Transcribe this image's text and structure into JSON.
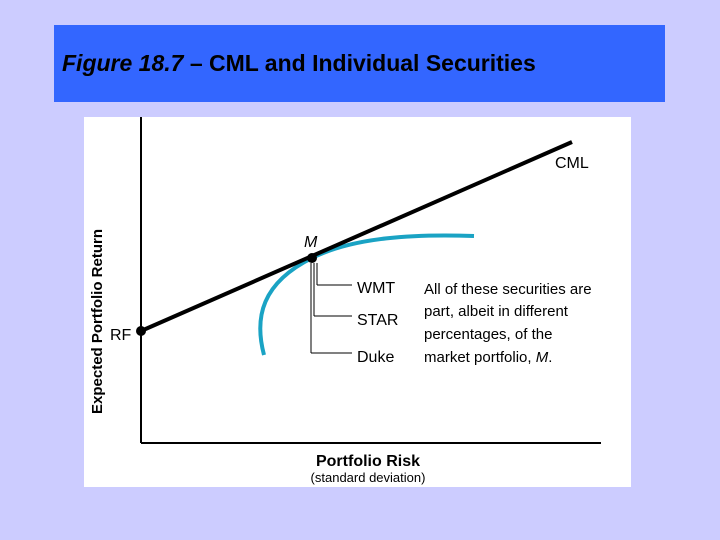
{
  "slide": {
    "title_fig": "Figure 18.7",
    "title_rest": " – CML and Individual Securities"
  },
  "diagram": {
    "y_axis_label": "Expected Portfolio Return",
    "x_axis_label": "Portfolio Risk",
    "x_axis_sublabel": "(standard deviation)",
    "cml_label": "CML",
    "market_label": "M",
    "rf_label": "RF",
    "securities": [
      "WMT",
      "STAR",
      "Duke"
    ],
    "note_lines": [
      "All of these securities are",
      "part, albeit in different",
      "percentages, of the",
      "market portfolio, "
    ],
    "note_italic": "M",
    "note_end": ".",
    "colors": {
      "cml_line": "#000000",
      "frontier": "#1aa3c4",
      "title_bg": "#3366ff",
      "background": "#ccccff"
    }
  }
}
